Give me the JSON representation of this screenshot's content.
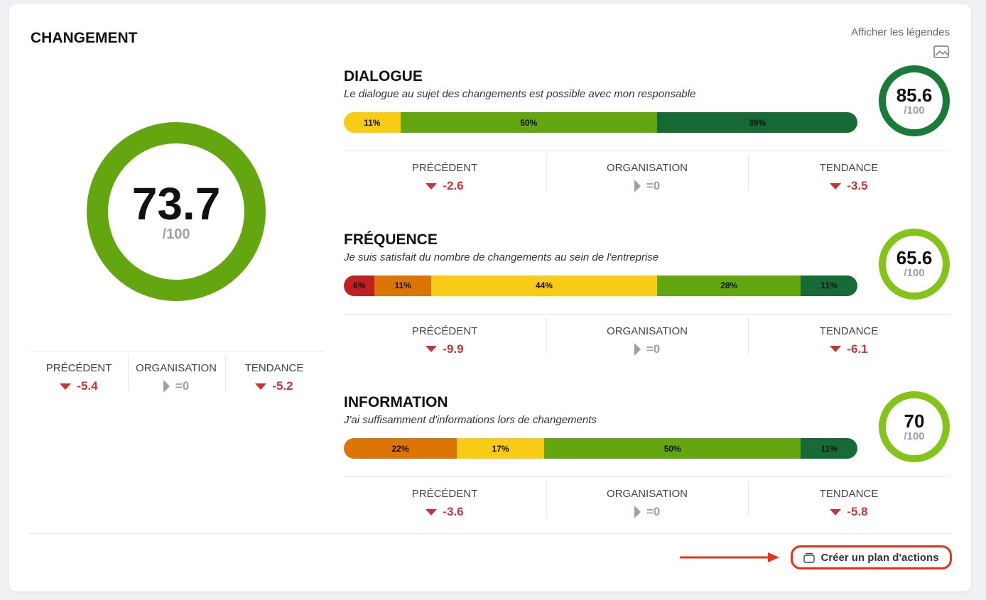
{
  "header": {
    "title": "CHANGEMENT",
    "legend_link": "Afficher les légendes"
  },
  "overall": {
    "score": 73.7,
    "denominator": "/100",
    "color": "#63a60f",
    "stats": [
      {
        "label": "PRÉCÉDENT",
        "value": "-5.4",
        "direction": "down"
      },
      {
        "label": "ORGANISATION",
        "value": "=0",
        "direction": "neutral"
      },
      {
        "label": "TENDANCE",
        "value": "-5.2",
        "direction": "down"
      }
    ]
  },
  "items": [
    {
      "title": "DIALOGUE",
      "subtitle": "Le dialogue au sujet des changements est possible avec mon responsable",
      "score": 85.6,
      "denominator": "/100",
      "color": "#1a7a3a",
      "segments": [
        {
          "value": 11,
          "label": "11%",
          "color": "#f8cb14"
        },
        {
          "value": 50,
          "label": "50%",
          "color": "#63a60f"
        },
        {
          "value": 39,
          "label": "39%",
          "color": "#166a35"
        }
      ],
      "stats": [
        {
          "label": "PRÉCÉDENT",
          "value": "-2.6",
          "direction": "down"
        },
        {
          "label": "ORGANISATION",
          "value": "=0",
          "direction": "neutral"
        },
        {
          "label": "TENDANCE",
          "value": "-3.5",
          "direction": "down"
        }
      ]
    },
    {
      "title": "FRÉQUENCE",
      "subtitle": "Je suis satisfait du nombre de changements au sein de l'entreprise",
      "score": 65.6,
      "denominator": "/100",
      "color": "#84c41a",
      "segments": [
        {
          "value": 6,
          "label": "6%",
          "color": "#c0201f"
        },
        {
          "value": 11,
          "label": "11%",
          "color": "#dd7506"
        },
        {
          "value": 44,
          "label": "44%",
          "color": "#f8cb14"
        },
        {
          "value": 28,
          "label": "28%",
          "color": "#63a60f"
        },
        {
          "value": 11,
          "label": "11%",
          "color": "#166a35"
        }
      ],
      "stats": [
        {
          "label": "PRÉCÉDENT",
          "value": "-9.9",
          "direction": "down"
        },
        {
          "label": "ORGANISATION",
          "value": "=0",
          "direction": "neutral"
        },
        {
          "label": "TENDANCE",
          "value": "-6.1",
          "direction": "down"
        }
      ]
    },
    {
      "title": "INFORMATION",
      "subtitle": "J'ai suffisamment d'informations lors de changements",
      "score": 70,
      "denominator": "/100",
      "color": "#84c41a",
      "segments": [
        {
          "value": 22,
          "label": "22%",
          "color": "#dd7506"
        },
        {
          "value": 17,
          "label": "17%",
          "color": "#f8cb14"
        },
        {
          "value": 50,
          "label": "50%",
          "color": "#63a60f"
        },
        {
          "value": 11,
          "label": "11%",
          "color": "#166a35"
        }
      ],
      "stats": [
        {
          "label": "PRÉCÉDENT",
          "value": "-3.6",
          "direction": "down"
        },
        {
          "label": "ORGANISATION",
          "value": "=0",
          "direction": "neutral"
        },
        {
          "label": "TENDANCE",
          "value": "-5.8",
          "direction": "down"
        }
      ]
    }
  ],
  "action_button": "Créer un plan d'actions"
}
